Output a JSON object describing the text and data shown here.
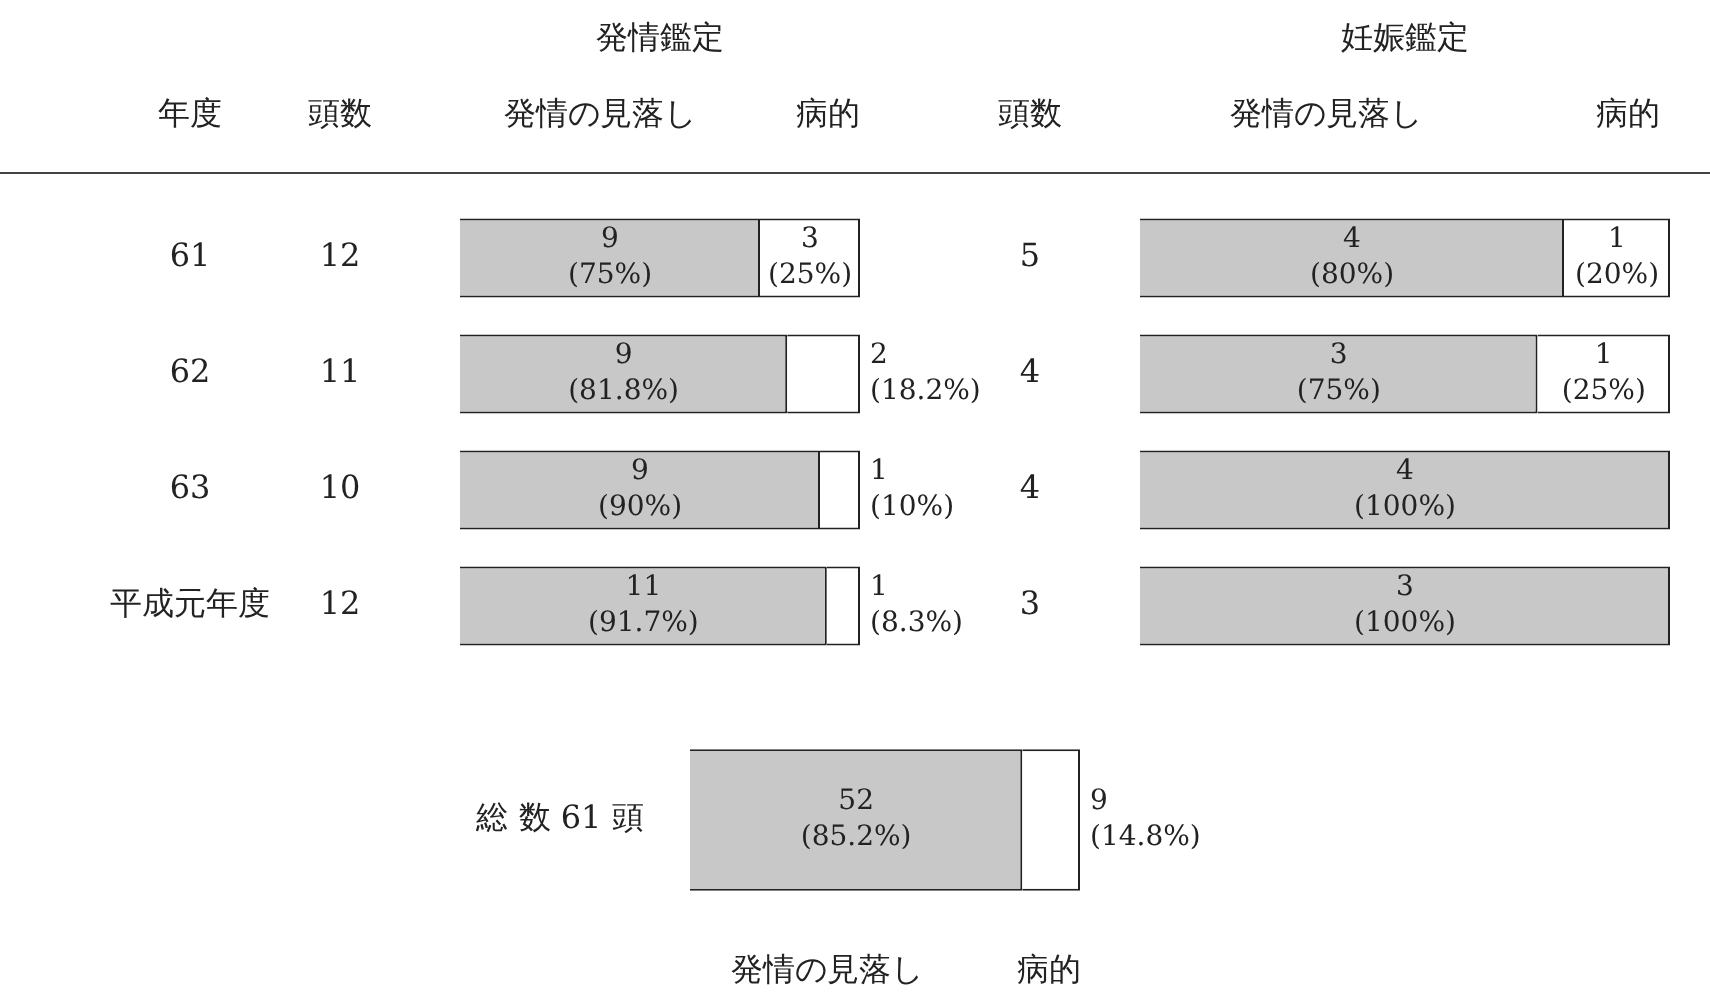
{
  "chart_data": [
    {
      "type": "bar",
      "orientation": "horizontal",
      "stacked": true,
      "title": "発情鑑定",
      "ylabel": "年度",
      "categories": [
        "61",
        "62",
        "63",
        "平成元年度"
      ],
      "xlim": [
        0,
        100
      ],
      "tick_labels": "y",
      "legend": false,
      "series": [
        {
          "name": "発情の見落し",
          "color": "#c8c8c8",
          "values": [
            75,
            81.8,
            90,
            91.7
          ],
          "value_labels": [
            "9 (75%)",
            "9 (81.8%)",
            "9 (90%)",
            "11 (91.7%)"
          ]
        },
        {
          "name": "病的",
          "color": "#ffffff",
          "values": [
            25,
            18.2,
            10,
            8.3
          ],
          "value_labels": [
            "3 (25%)",
            "2 (18.2%)",
            "1 (10%)",
            "1 (8.3%)"
          ]
        }
      ],
      "annotations": [
        "頭数",
        "12",
        "11",
        "10",
        "12"
      ]
    },
    {
      "type": "bar",
      "orientation": "horizontal",
      "stacked": true,
      "title": "妊娠鑑定",
      "categories": [
        null,
        null,
        null,
        null
      ],
      "xlim": [
        0,
        100
      ],
      "legend": false,
      "series": [
        {
          "name": "発情の見落し",
          "color": "#c8c8c8",
          "values": [
            80,
            75,
            100,
            100
          ],
          "value_labels": [
            "4 (80%)",
            "3 (75%)",
            "4 (100%)",
            "3 (100%)"
          ]
        },
        {
          "name": "病的",
          "color": "#ffffff",
          "values": [
            20,
            25,
            null,
            null
          ],
          "value_labels": [
            "1 (20%)",
            "1 (25%)",
            null,
            null
          ]
        }
      ],
      "annotations": [
        "頭数",
        "5",
        "4",
        "4",
        "3"
      ]
    },
    {
      "type": "bar",
      "orientation": "horizontal",
      "stacked": true,
      "categories": [
        "総 数 61 頭"
      ],
      "xlim": [
        0,
        100
      ],
      "tick_labels": "y",
      "legend": false,
      "series": [
        {
          "name": "発情の見落し",
          "color": "#c8c8c8",
          "values": [
            85.2
          ],
          "value_labels": [
            "52 (85.2%)"
          ]
        },
        {
          "name": "病的",
          "color": "#ffffff",
          "values": [
            14.8
          ],
          "value_labels": [
            "9 (14.8%)"
          ]
        }
      ]
    }
  ]
}
